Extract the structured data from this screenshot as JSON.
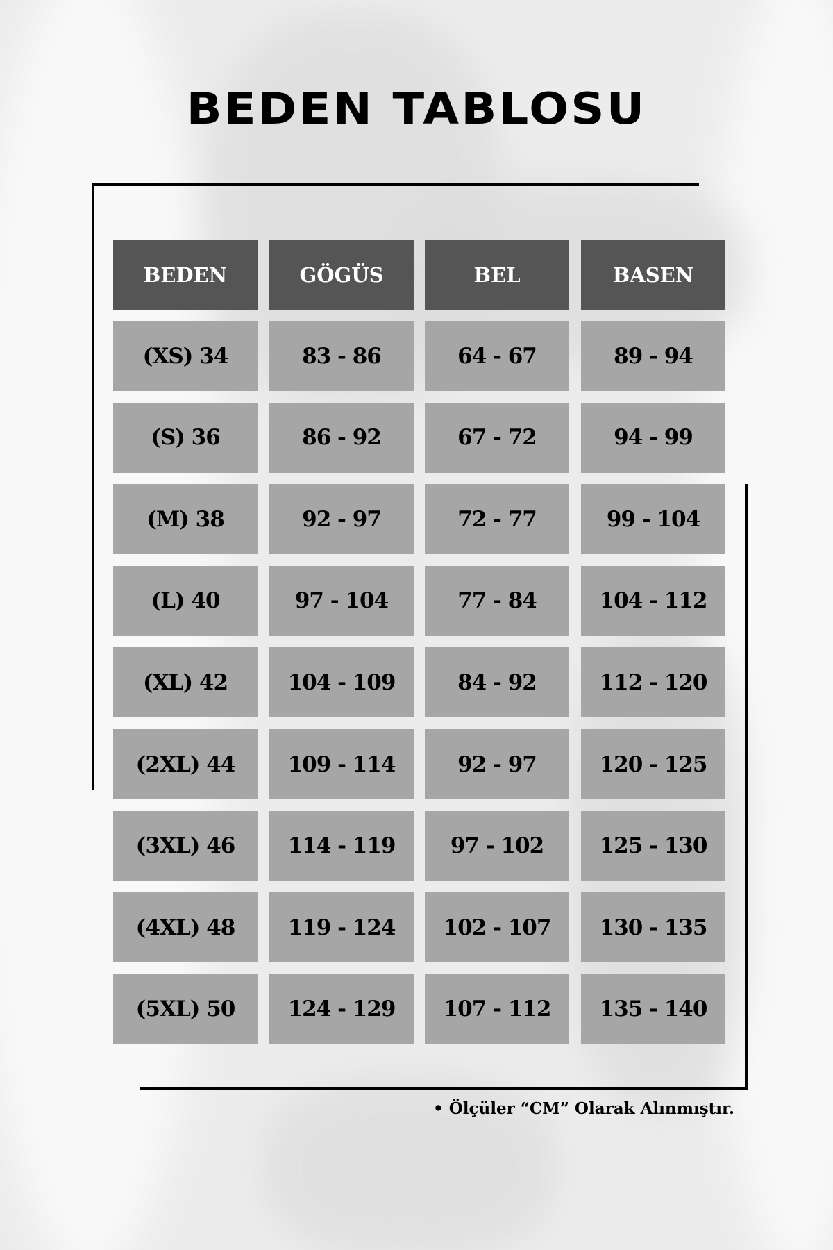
{
  "title": "BEDEN TABLOSU",
  "colors": {
    "header_bg": "#555555",
    "cell_bg": "#a6a6a6",
    "header_text": "#ffffff",
    "cell_text": "#000000"
  },
  "table": {
    "headers": [
      "BEDEN",
      "GÖGÜS",
      "BEL",
      "BASEN"
    ],
    "rows": [
      [
        "(XS) 34",
        "83 - 86",
        "64 - 67",
        "89 - 94"
      ],
      [
        "(S) 36",
        "86 - 92",
        "67 - 72",
        "94 - 99"
      ],
      [
        "(M) 38",
        "92 - 97",
        "72 - 77",
        "99 - 104"
      ],
      [
        "(L) 40",
        "97 - 104",
        "77 - 84",
        "104 - 112"
      ],
      [
        "(XL) 42",
        "104 - 109",
        "84 - 92",
        "112 - 120"
      ],
      [
        "(2XL) 44",
        "109 - 114",
        "92 - 97",
        "120 - 125"
      ],
      [
        "(3XL) 46",
        "114 - 119",
        "97 - 102",
        "125 - 130"
      ],
      [
        "(4XL) 48",
        "119 - 124",
        "102 - 107",
        "130 - 135"
      ],
      [
        "(5XL) 50",
        "124 - 129",
        "107 - 112",
        "135 - 140"
      ]
    ]
  },
  "footnote": "• Ölçüler “CM” Olarak Alınmıştır."
}
